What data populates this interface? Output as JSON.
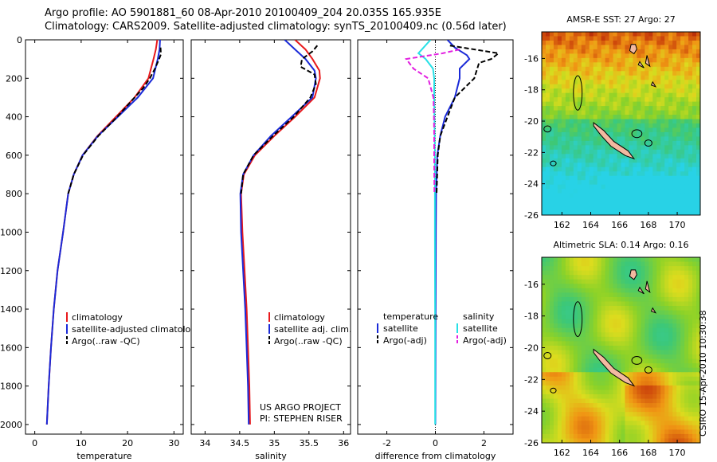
{
  "header": {
    "line1": "Argo profile: AO 5901881_60 08-Apr-2010 20100409_204 20.035S 165.935E",
    "line2": "Climatology: CARS2009. Satellite-adjusted climatology: synTS_20100409.nc (0.56d later)"
  },
  "credit": "CSIRO 15-Apr-2010 10:30:38",
  "colors": {
    "climatology": "#e8191c",
    "satellite": "#1a2ad8",
    "argo": "#000000",
    "sat_salinity": "#27e0e6",
    "argo_adj_salinity": "#e21fe0",
    "land": "#f2b9a0"
  },
  "chart_data": [
    {
      "type": "line",
      "xlabel": "temperature",
      "ylim": [
        2050,
        0
      ],
      "xlim": [
        -2,
        32
      ],
      "y_ticks": [
        0,
        200,
        400,
        600,
        800,
        1000,
        1200,
        1400,
        1600,
        1800,
        2000
      ],
      "x_ticks": [
        0,
        10,
        20,
        30
      ],
      "legend": [
        "climatology",
        "satellite-adjusted climatology",
        "Argo(..raw -QC)"
      ],
      "series": [
        {
          "name": "climatology",
          "style": "solid",
          "color": "#e8191c",
          "points": [
            [
              26.4,
              0
            ],
            [
              26.1,
              50
            ],
            [
              25.6,
              100
            ],
            [
              24.5,
              200
            ],
            [
              21.5,
              300
            ],
            [
              17.5,
              400
            ],
            [
              13.5,
              500
            ],
            [
              10.3,
              600
            ],
            [
              8.4,
              700
            ],
            [
              7.2,
              800
            ],
            [
              6.1,
              1000
            ],
            [
              4.9,
              1200
            ],
            [
              4.1,
              1400
            ],
            [
              3.5,
              1600
            ],
            [
              3.0,
              1800
            ],
            [
              2.6,
              2000
            ]
          ]
        },
        {
          "name": "satellite-adjusted climatology",
          "style": "solid",
          "color": "#1a2ad8",
          "points": [
            [
              27.0,
              0
            ],
            [
              26.9,
              50
            ],
            [
              26.5,
              100
            ],
            [
              25.5,
              200
            ],
            [
              22.2,
              300
            ],
            [
              17.9,
              400
            ],
            [
              13.6,
              500
            ],
            [
              10.3,
              600
            ],
            [
              8.4,
              700
            ],
            [
              7.2,
              800
            ],
            [
              6.1,
              1000
            ],
            [
              4.9,
              1200
            ],
            [
              4.1,
              1400
            ],
            [
              3.5,
              1600
            ],
            [
              3.0,
              1800
            ],
            [
              2.6,
              2000
            ]
          ]
        },
        {
          "name": "Argo(..raw -QC)",
          "style": "dashed",
          "color": "#000000",
          "points": [
            [
              27.1,
              40
            ],
            [
              27.2,
              75
            ],
            [
              26.8,
              100
            ],
            [
              25.9,
              150
            ],
            [
              24.8,
              200
            ],
            [
              23.4,
              250
            ],
            [
              21.5,
              300
            ],
            [
              17.8,
              400
            ],
            [
              13.7,
              500
            ],
            [
              10.4,
              600
            ],
            [
              8.4,
              700
            ],
            [
              7.2,
              800
            ]
          ]
        }
      ]
    },
    {
      "type": "line",
      "xlabel": "salinity",
      "ylim": [
        2050,
        0
      ],
      "xlim": [
        33.8,
        36.1
      ],
      "x_ticks": [
        34,
        34.5,
        35,
        35.5,
        36
      ],
      "x_tick_labels": [
        "34",
        "34.5",
        "35",
        "35.5",
        "36"
      ],
      "legend": [
        "climatology",
        "satellite adj. clim.",
        "Argo(..raw -QC)"
      ],
      "annotation": [
        "US ARGO PROJECT",
        "PI: STEPHEN RISER"
      ],
      "series": [
        {
          "name": "climatology",
          "style": "solid",
          "color": "#e8191c",
          "points": [
            [
              35.3,
              0
            ],
            [
              35.45,
              50
            ],
            [
              35.55,
              100
            ],
            [
              35.65,
              160
            ],
            [
              35.66,
              200
            ],
            [
              35.58,
              300
            ],
            [
              35.3,
              400
            ],
            [
              35.0,
              500
            ],
            [
              34.72,
              600
            ],
            [
              34.56,
              700
            ],
            [
              34.52,
              800
            ],
            [
              34.54,
              1000
            ],
            [
              34.57,
              1200
            ],
            [
              34.6,
              1400
            ],
            [
              34.62,
              1600
            ],
            [
              34.64,
              1800
            ],
            [
              34.65,
              2000
            ]
          ]
        },
        {
          "name": "satellite adj. clim.",
          "style": "solid",
          "color": "#1a2ad8",
          "points": [
            [
              35.15,
              0
            ],
            [
              35.3,
              50
            ],
            [
              35.45,
              100
            ],
            [
              35.58,
              160
            ],
            [
              35.6,
              200
            ],
            [
              35.55,
              300
            ],
            [
              35.25,
              400
            ],
            [
              34.95,
              500
            ],
            [
              34.7,
              600
            ],
            [
              34.55,
              700
            ],
            [
              34.51,
              800
            ],
            [
              34.52,
              1000
            ],
            [
              34.55,
              1200
            ],
            [
              34.58,
              1400
            ],
            [
              34.6,
              1600
            ],
            [
              34.62,
              1800
            ],
            [
              34.63,
              2000
            ]
          ]
        },
        {
          "name": "Argo(..raw -QC)",
          "style": "dashed",
          "color": "#000000",
          "points": [
            [
              35.62,
              30
            ],
            [
              35.55,
              60
            ],
            [
              35.4,
              100
            ],
            [
              35.38,
              140
            ],
            [
              35.58,
              180
            ],
            [
              35.6,
              230
            ],
            [
              35.52,
              300
            ],
            [
              35.28,
              400
            ],
            [
              34.98,
              500
            ],
            [
              34.7,
              600
            ],
            [
              34.55,
              700
            ],
            [
              34.52,
              800
            ]
          ]
        }
      ]
    },
    {
      "type": "line",
      "xlabel": "difference from climatology",
      "ylim": [
        2050,
        0
      ],
      "xlim": [
        -3.2,
        3.2
      ],
      "x_ticks": [
        -2,
        0,
        2
      ],
      "legend_temperature": {
        "title": "temperature",
        "items": [
          "satellite",
          "Argo(-adj)"
        ]
      },
      "legend_salinity": {
        "title": "salinity",
        "items": [
          "satellite",
          "Argo(-adj)"
        ]
      },
      "series": [
        {
          "name": "temperature satellite",
          "style": "solid",
          "color": "#1a2ad8",
          "points": [
            [
              0.5,
              0
            ],
            [
              0.8,
              40
            ],
            [
              1.3,
              80
            ],
            [
              1.4,
              100
            ],
            [
              1.0,
              150
            ],
            [
              1.0,
              200
            ],
            [
              0.8,
              300
            ],
            [
              0.4,
              400
            ],
            [
              0.2,
              500
            ],
            [
              0.08,
              600
            ],
            [
              0.03,
              800
            ],
            [
              0.02,
              1000
            ],
            [
              0.01,
              1500
            ],
            [
              0.0,
              2000
            ]
          ]
        },
        {
          "name": "temperature Argo(-adj)",
          "style": "dashed",
          "color": "#000000",
          "points": [
            [
              0.6,
              30
            ],
            [
              2.6,
              70
            ],
            [
              2.3,
              100
            ],
            [
              1.8,
              120
            ],
            [
              1.6,
              200
            ],
            [
              0.8,
              300
            ],
            [
              0.5,
              400
            ],
            [
              0.2,
              500
            ],
            [
              0.1,
              600
            ],
            [
              0.05,
              800
            ]
          ]
        },
        {
          "name": "salinity satellite",
          "style": "solid",
          "color": "#27e0e6",
          "points": [
            [
              -0.2,
              0
            ],
            [
              -0.7,
              70
            ],
            [
              -0.4,
              100
            ],
            [
              -0.1,
              150
            ],
            [
              -0.05,
              200
            ],
            [
              -0.05,
              300
            ],
            [
              -0.04,
              400
            ],
            [
              -0.03,
              500
            ],
            [
              -0.02,
              600
            ],
            [
              -0.02,
              800
            ],
            [
              -0.02,
              1000
            ],
            [
              -0.01,
              1500
            ],
            [
              -0.01,
              2000
            ]
          ]
        },
        {
          "name": "salinity Argo(-adj)",
          "style": "dashed",
          "color": "#e21fe0",
          "points": [
            [
              1.0,
              50
            ],
            [
              0.3,
              70
            ],
            [
              -1.2,
              100
            ],
            [
              -0.9,
              150
            ],
            [
              -0.3,
              200
            ],
            [
              -0.08,
              300
            ],
            [
              -0.06,
              400
            ],
            [
              -0.05,
              500
            ],
            [
              -0.05,
              600
            ],
            [
              -0.04,
              800
            ]
          ]
        }
      ]
    },
    {
      "type": "heatmap",
      "title": "AMSR-E SST: 27 Argo: 27",
      "xlim": [
        160.6,
        171.6
      ],
      "ylim": [
        -26,
        -14.3
      ],
      "x_ticks": [
        162,
        164,
        166,
        168,
        170
      ],
      "y_ticks": [
        -16,
        -18,
        -20,
        -22,
        -24,
        -26
      ]
    },
    {
      "type": "heatmap",
      "title": "Altimetric SLA: 0.14 Argo: 0.16",
      "xlim": [
        160.6,
        171.6
      ],
      "ylim": [
        -26,
        -14.3
      ],
      "x_ticks": [
        162,
        164,
        166,
        168,
        170
      ],
      "y_ticks": [
        -16,
        -18,
        -20,
        -22,
        -24,
        -26
      ]
    }
  ]
}
